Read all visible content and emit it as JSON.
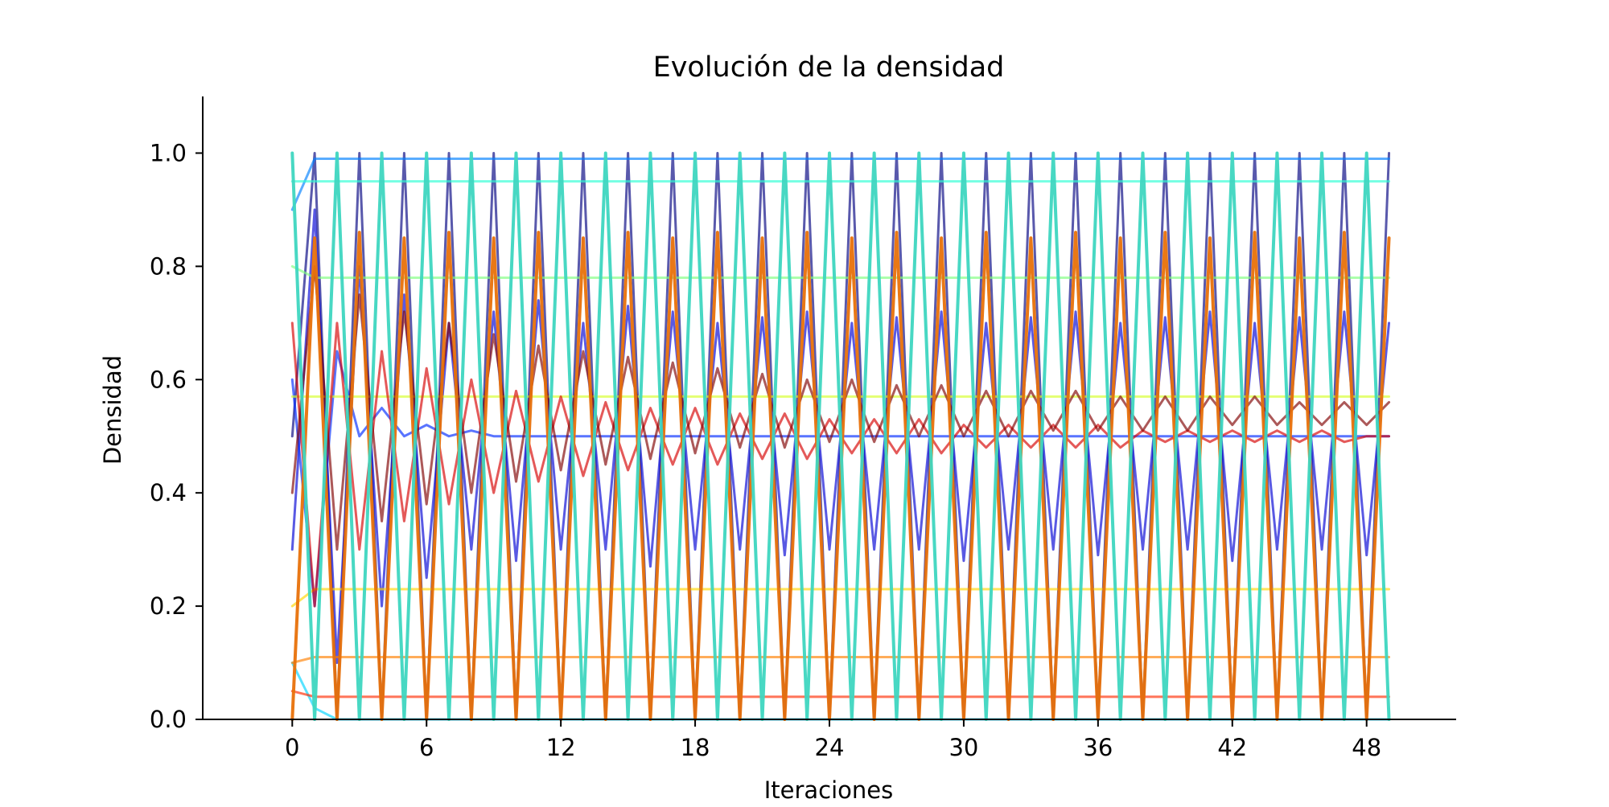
{
  "chart_data": {
    "type": "line",
    "title": "Evolución de la densidad",
    "xlabel": "Iteraciones",
    "ylabel": "Densidad",
    "xlim": [
      -4,
      52
    ],
    "ylim": [
      0,
      1.1
    ],
    "xticks": [
      0,
      6,
      12,
      18,
      24,
      30,
      36,
      42,
      48
    ],
    "yticks": [
      0.0,
      0.2,
      0.4,
      0.6,
      0.8,
      1.0
    ],
    "ytick_labels": [
      "0.0",
      "0.2",
      "0.4",
      "0.6",
      "0.8",
      "1.0"
    ],
    "grid": false,
    "legend": "none",
    "colormap": "jet",
    "highlight_colors": [
      "#e8710a",
      "#3ed6c0"
    ],
    "series": [
      {
        "values": [
          0.0,
          0.85,
          0.0,
          0.86,
          0.0,
          0.85,
          0.0,
          0.86,
          0.0,
          0.85,
          0.0,
          0.86,
          0.0,
          0.85,
          0.0,
          0.86,
          0.0,
          0.85,
          0.0,
          0.86,
          0.0,
          0.85,
          0.0,
          0.86,
          0.0,
          0.85,
          0.0,
          0.86,
          0.0,
          0.85,
          0.0,
          0.86,
          0.0,
          0.85,
          0.0,
          0.86,
          0.0,
          0.85,
          0.0,
          0.86,
          0.0,
          0.85,
          0.0,
          0.86,
          0.0,
          0.85,
          0.0,
          0.86,
          0.0,
          0.85
        ]
      },
      {
        "values": [
          1.0,
          0.0,
          1.0,
          0.0,
          1.0,
          0.0,
          1.0,
          0.0,
          1.0,
          0.0,
          1.0,
          0.0,
          1.0,
          0.0,
          1.0,
          0.0,
          1.0,
          0.0,
          1.0,
          0.0,
          1.0,
          0.0,
          1.0,
          0.0,
          1.0,
          0.0,
          1.0,
          0.0,
          1.0,
          0.0,
          1.0,
          0.0,
          1.0,
          0.0,
          1.0,
          0.0,
          1.0,
          0.0,
          1.0,
          0.0,
          1.0,
          0.0,
          1.0,
          0.0,
          1.0,
          0.0,
          1.0,
          0.0,
          1.0,
          0.0
        ]
      },
      {
        "values": [
          0.5,
          1.0,
          0.0,
          1.0,
          0.0,
          1.0,
          0.0,
          1.0,
          0.0,
          1.0,
          0.0,
          1.0,
          0.0,
          1.0,
          0.0,
          1.0,
          0.0,
          1.0,
          0.0,
          1.0,
          0.0,
          1.0,
          0.0,
          1.0,
          0.0,
          1.0,
          0.0,
          1.0,
          0.0,
          1.0,
          0.0,
          1.0,
          0.0,
          1.0,
          0.0,
          1.0,
          0.0,
          1.0,
          0.0,
          1.0,
          0.0,
          1.0,
          0.0,
          1.0,
          0.0,
          1.0,
          0.0,
          1.0,
          0.0,
          1.0
        ]
      },
      {
        "values": [
          0.3,
          0.9,
          0.1,
          0.8,
          0.2,
          0.75,
          0.25,
          0.7,
          0.3,
          0.72,
          0.28,
          0.74,
          0.3,
          0.7,
          0.3,
          0.73,
          0.27,
          0.72,
          0.3,
          0.7,
          0.3,
          0.71,
          0.29,
          0.72,
          0.3,
          0.7,
          0.3,
          0.71,
          0.3,
          0.72,
          0.28,
          0.7,
          0.3,
          0.71,
          0.3,
          0.72,
          0.29,
          0.7,
          0.3,
          0.71,
          0.3,
          0.72,
          0.28,
          0.7,
          0.3,
          0.71,
          0.3,
          0.72,
          0.29,
          0.7
        ]
      },
      {
        "values": [
          0.6,
          0.2,
          0.65,
          0.5,
          0.55,
          0.5,
          0.52,
          0.5,
          0.51,
          0.5,
          0.5,
          0.5,
          0.5,
          0.5,
          0.5,
          0.5,
          0.5,
          0.5,
          0.5,
          0.5,
          0.5,
          0.5,
          0.5,
          0.5,
          0.5,
          0.5,
          0.5,
          0.5,
          0.5,
          0.5,
          0.5,
          0.5,
          0.5,
          0.5,
          0.5,
          0.5,
          0.5,
          0.5,
          0.5,
          0.5,
          0.5,
          0.5,
          0.5,
          0.5,
          0.5,
          0.5,
          0.5,
          0.5,
          0.5,
          0.5
        ]
      },
      {
        "values": [
          0.9,
          0.99,
          0.99,
          0.99,
          0.99,
          0.99,
          0.99,
          0.99,
          0.99,
          0.99,
          0.99,
          0.99,
          0.99,
          0.99,
          0.99,
          0.99,
          0.99,
          0.99,
          0.99,
          0.99,
          0.99,
          0.99,
          0.99,
          0.99,
          0.99,
          0.99,
          0.99,
          0.99,
          0.99,
          0.99,
          0.99,
          0.99,
          0.99,
          0.99,
          0.99,
          0.99,
          0.99,
          0.99,
          0.99,
          0.99,
          0.99,
          0.99,
          0.99,
          0.99,
          0.99,
          0.99,
          0.99,
          0.99,
          0.99,
          0.99
        ]
      },
      {
        "values": [
          0.1,
          0.02,
          0.0,
          0.0,
          0.0,
          0.0,
          0.0,
          0.0,
          0.0,
          0.0,
          0.0,
          0.0,
          0.0,
          0.0,
          0.0,
          0.0,
          0.0,
          0.0,
          0.0,
          0.0,
          0.0,
          0.0,
          0.0,
          0.0,
          0.0,
          0.0,
          0.0,
          0.0,
          0.0,
          0.0,
          0.0,
          0.0,
          0.0,
          0.0,
          0.0,
          0.0,
          0.0,
          0.0,
          0.0,
          0.0,
          0.0,
          0.0,
          0.0,
          0.0,
          0.0,
          0.0,
          0.0,
          0.0,
          0.0,
          0.0
        ]
      },
      {
        "values": [
          0.95,
          0.95,
          0.95,
          0.95,
          0.95,
          0.95,
          0.95,
          0.95,
          0.95,
          0.95,
          0.95,
          0.95,
          0.95,
          0.95,
          0.95,
          0.95,
          0.95,
          0.95,
          0.95,
          0.95,
          0.95,
          0.95,
          0.95,
          0.95,
          0.95,
          0.95,
          0.95,
          0.95,
          0.95,
          0.95,
          0.95,
          0.95,
          0.95,
          0.95,
          0.95,
          0.95,
          0.95,
          0.95,
          0.95,
          0.95,
          0.95,
          0.95,
          0.95,
          0.95,
          0.95,
          0.95,
          0.95,
          0.95,
          0.95,
          0.95
        ]
      },
      {
        "values": [
          0.8,
          0.78,
          0.78,
          0.78,
          0.78,
          0.78,
          0.78,
          0.78,
          0.78,
          0.78,
          0.78,
          0.78,
          0.78,
          0.78,
          0.78,
          0.78,
          0.78,
          0.78,
          0.78,
          0.78,
          0.78,
          0.78,
          0.78,
          0.78,
          0.78,
          0.78,
          0.78,
          0.78,
          0.78,
          0.78,
          0.78,
          0.78,
          0.78,
          0.78,
          0.78,
          0.78,
          0.78,
          0.78,
          0.78,
          0.78,
          0.78,
          0.78,
          0.78,
          0.78,
          0.78,
          0.78,
          0.78,
          0.78,
          0.78,
          0.78
        ]
      },
      {
        "values": [
          0.57,
          0.57,
          0.57,
          0.57,
          0.57,
          0.57,
          0.57,
          0.57,
          0.57,
          0.57,
          0.57,
          0.57,
          0.57,
          0.57,
          0.57,
          0.57,
          0.57,
          0.57,
          0.57,
          0.57,
          0.57,
          0.57,
          0.57,
          0.57,
          0.57,
          0.57,
          0.57,
          0.57,
          0.57,
          0.57,
          0.57,
          0.57,
          0.57,
          0.57,
          0.57,
          0.57,
          0.57,
          0.57,
          0.57,
          0.57,
          0.57,
          0.57,
          0.57,
          0.57,
          0.57,
          0.57,
          0.57,
          0.57,
          0.57,
          0.57
        ]
      },
      {
        "values": [
          0.2,
          0.23,
          0.23,
          0.23,
          0.23,
          0.23,
          0.23,
          0.23,
          0.23,
          0.23,
          0.23,
          0.23,
          0.23,
          0.23,
          0.23,
          0.23,
          0.23,
          0.23,
          0.23,
          0.23,
          0.23,
          0.23,
          0.23,
          0.23,
          0.23,
          0.23,
          0.23,
          0.23,
          0.23,
          0.23,
          0.23,
          0.23,
          0.23,
          0.23,
          0.23,
          0.23,
          0.23,
          0.23,
          0.23,
          0.23,
          0.23,
          0.23,
          0.23,
          0.23,
          0.23,
          0.23,
          0.23,
          0.23,
          0.23,
          0.23
        ]
      },
      {
        "values": [
          0.1,
          0.11,
          0.11,
          0.11,
          0.11,
          0.11,
          0.11,
          0.11,
          0.11,
          0.11,
          0.11,
          0.11,
          0.11,
          0.11,
          0.11,
          0.11,
          0.11,
          0.11,
          0.11,
          0.11,
          0.11,
          0.11,
          0.11,
          0.11,
          0.11,
          0.11,
          0.11,
          0.11,
          0.11,
          0.11,
          0.11,
          0.11,
          0.11,
          0.11,
          0.11,
          0.11,
          0.11,
          0.11,
          0.11,
          0.11,
          0.11,
          0.11,
          0.11,
          0.11,
          0.11,
          0.11,
          0.11,
          0.11,
          0.11,
          0.11
        ]
      },
      {
        "values": [
          0.05,
          0.04,
          0.04,
          0.04,
          0.04,
          0.04,
          0.04,
          0.04,
          0.04,
          0.04,
          0.04,
          0.04,
          0.04,
          0.04,
          0.04,
          0.04,
          0.04,
          0.04,
          0.04,
          0.04,
          0.04,
          0.04,
          0.04,
          0.04,
          0.04,
          0.04,
          0.04,
          0.04,
          0.04,
          0.04,
          0.04,
          0.04,
          0.04,
          0.04,
          0.04,
          0.04,
          0.04,
          0.04,
          0.04,
          0.04,
          0.04,
          0.04,
          0.04,
          0.04,
          0.04,
          0.04,
          0.04,
          0.04,
          0.04,
          0.04
        ]
      },
      {
        "values": [
          0.7,
          0.2,
          0.7,
          0.3,
          0.65,
          0.35,
          0.62,
          0.38,
          0.6,
          0.4,
          0.58,
          0.42,
          0.57,
          0.43,
          0.56,
          0.44,
          0.55,
          0.45,
          0.55,
          0.45,
          0.54,
          0.46,
          0.54,
          0.46,
          0.53,
          0.47,
          0.53,
          0.47,
          0.53,
          0.47,
          0.52,
          0.48,
          0.52,
          0.48,
          0.52,
          0.48,
          0.52,
          0.48,
          0.51,
          0.49,
          0.51,
          0.49,
          0.51,
          0.49,
          0.51,
          0.49,
          0.51,
          0.49,
          0.5,
          0.5
        ]
      },
      {
        "values": [
          0.4,
          0.8,
          0.3,
          0.75,
          0.35,
          0.72,
          0.38,
          0.7,
          0.4,
          0.68,
          0.42,
          0.66,
          0.44,
          0.65,
          0.45,
          0.64,
          0.46,
          0.63,
          0.47,
          0.62,
          0.48,
          0.61,
          0.48,
          0.6,
          0.49,
          0.6,
          0.49,
          0.59,
          0.5,
          0.59,
          0.5,
          0.58,
          0.5,
          0.58,
          0.51,
          0.58,
          0.51,
          0.57,
          0.51,
          0.57,
          0.51,
          0.57,
          0.52,
          0.57,
          0.52,
          0.56,
          0.52,
          0.56,
          0.52,
          0.56
        ]
      }
    ]
  }
}
